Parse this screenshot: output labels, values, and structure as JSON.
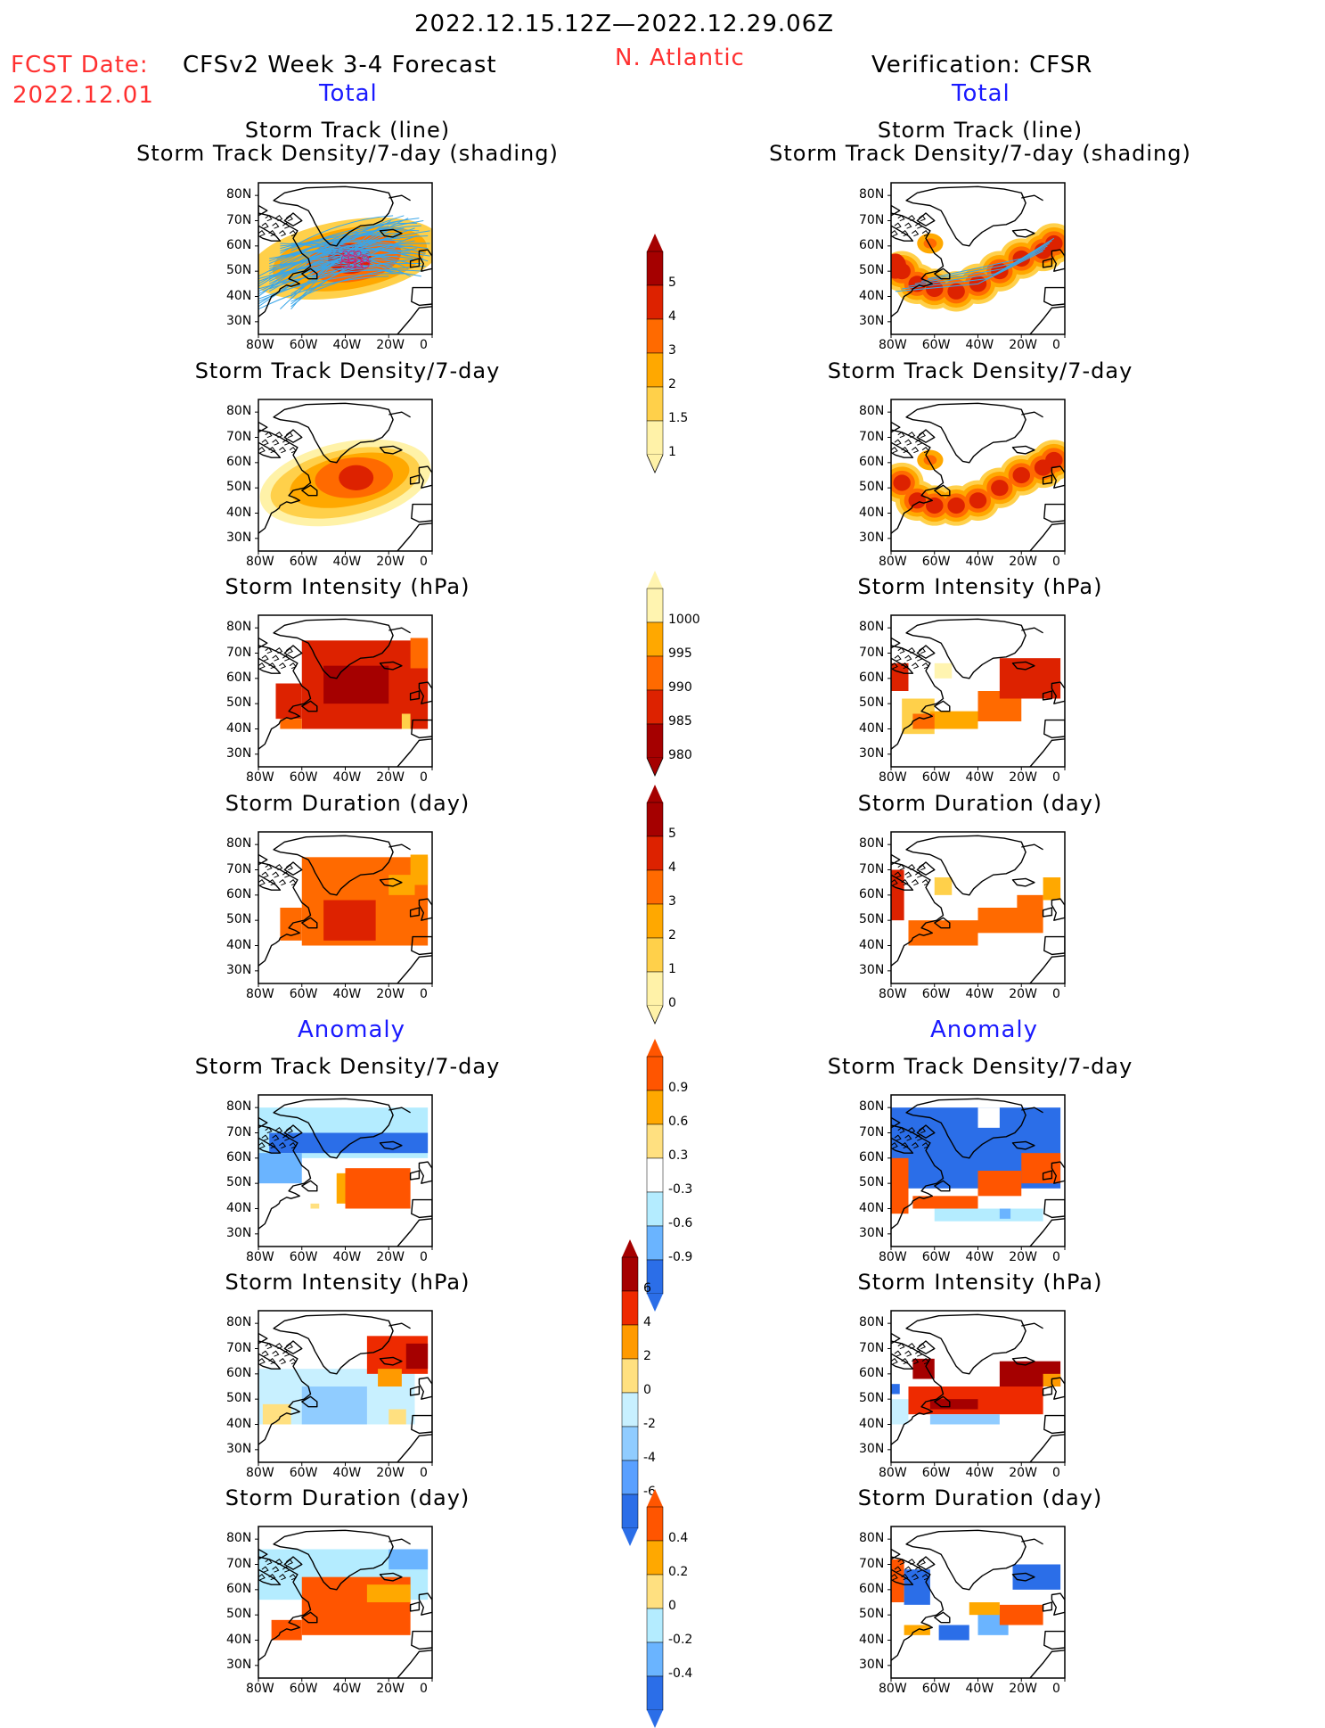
{
  "header": {
    "period": "2022.12.15.12Z—2022.12.29.06Z",
    "fcst_label": "FCST Date:",
    "fcst_date": "2022.12.01",
    "model": "CFSv2 Week 3-4 Forecast",
    "region": "N. Atlantic",
    "verification": "Verification: CFSR"
  },
  "sections": {
    "total": "Total",
    "anomaly": "Anomaly"
  },
  "axes": {
    "lat": [
      "80N",
      "70N",
      "60N",
      "50N",
      "40N",
      "30N"
    ],
    "lon": [
      "80W",
      "60W",
      "40W",
      "20W",
      "0"
    ]
  },
  "titles": {
    "track_line": "Storm Track (line)",
    "track_shading": "Storm Track Density/7-day (shading)",
    "density": "Storm Track Density/7-day",
    "intensity": "Storm Intensity (hPa)",
    "duration": "Storm Duration (day)"
  },
  "colorbars": [
    {
      "id": "density-total",
      "labels": [
        "5",
        "4",
        "3",
        "2",
        "1.5",
        "1"
      ],
      "colors": [
        "#a50000",
        "#dd2200",
        "#ff6a00",
        "#ffa800",
        "#ffd04a",
        "#fff2a8"
      ],
      "low_open": true,
      "high_tri": true
    },
    {
      "id": "intensity-total",
      "labels": [
        "1000",
        "995",
        "990",
        "985",
        "980"
      ],
      "colors": [
        "#fff4b0",
        "#ffa800",
        "#ff6a00",
        "#dd2200",
        "#a50000"
      ],
      "low_open": true,
      "high_tri": true,
      "reverse": true
    },
    {
      "id": "duration-total",
      "labels": [
        "5",
        "4",
        "3",
        "2",
        "1",
        "0"
      ],
      "colors": [
        "#a50000",
        "#dd2200",
        "#ff6a00",
        "#ffa800",
        "#ffd04a",
        "#fff2a8"
      ],
      "low_open": true,
      "high_tri": true
    },
    {
      "id": "density-anom",
      "labels": [
        "0.9",
        "0.6",
        "0.3",
        "-0.3",
        "-0.6",
        "-0.9"
      ],
      "colors": [
        "#ff5500",
        "#ffa800",
        "#ffe080",
        "#ffffff",
        "#b4ecff",
        "#6ab4ff",
        "#2b6ee8"
      ],
      "diverging": true
    },
    {
      "id": "intensity-anom",
      "labels": [
        "6",
        "4",
        "2",
        "0",
        "-2",
        "-4",
        "-6"
      ],
      "colors": [
        "#a50000",
        "#ee2a00",
        "#ff9a00",
        "#ffe080",
        "#c8f0ff",
        "#90ccff",
        "#5aa0ff",
        "#2b6ee8"
      ],
      "diverging": true
    },
    {
      "id": "duration-anom",
      "labels": [
        "0.4",
        "0.2",
        "0",
        "-0.2",
        "-0.4"
      ],
      "colors": [
        "#ff5500",
        "#ffa800",
        "#ffe080",
        "#b4ecff",
        "#6ab4ff",
        "#2b6ee8"
      ],
      "diverging": true
    }
  ]
}
